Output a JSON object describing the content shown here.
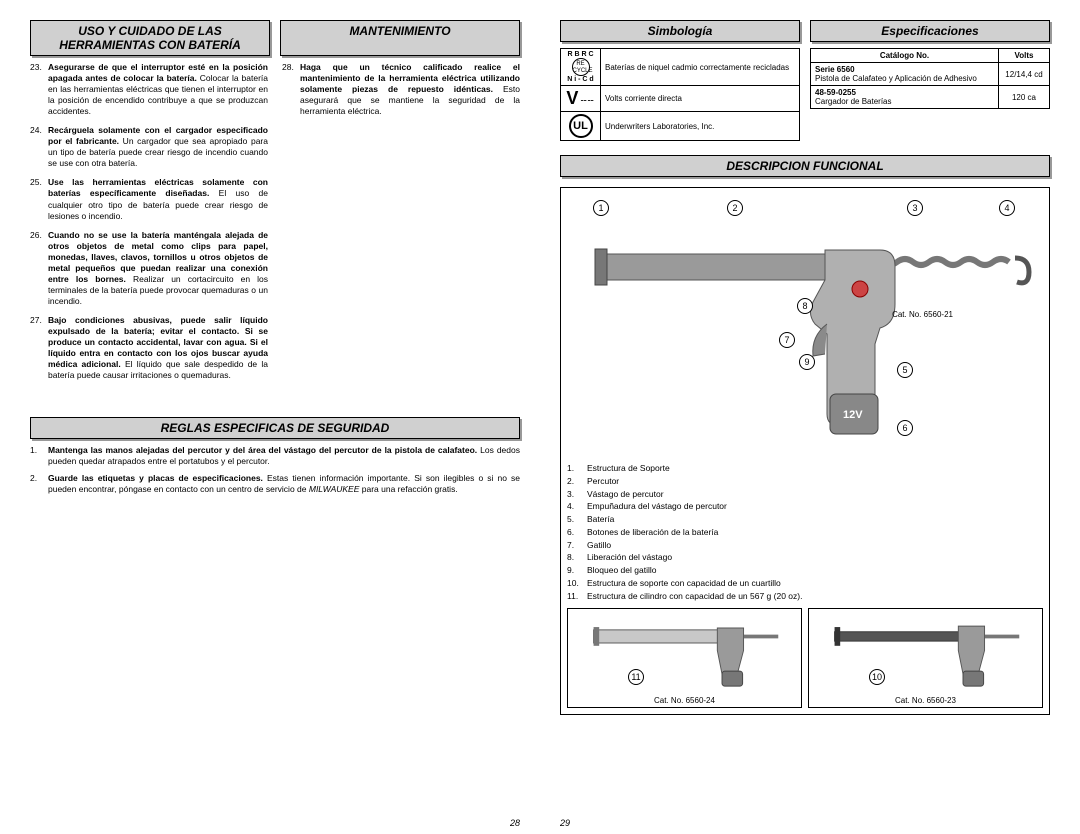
{
  "left": {
    "header_care": "USO Y CUIDADO DE LAS HERRAMIENTAS CON BATERÍA",
    "header_maint": "MANTENIMIENTO",
    "items_col1": [
      "<b>Asegurarse de que el interruptor esté en la posición apagada antes de colocar la batería.</b> Colocar la batería en las herramientas eléctricas que tienen el interruptor en la posición de encendido contribuye a que se produzcan accidentes.",
      "<b>Recárguela solamente con el cargador especificado por el fabricante.</b> Un cargador que sea apropiado para un tipo de batería puede crear riesgo de incendio cuando se use con otra batería.",
      "<b>Use las herramientas eléctricas solamente con baterías específicamente diseñadas.</b> El uso de cualquier otro tipo de batería puede crear riesgo de lesiones o incendio.",
      "<b>Cuando no se use la batería manténgala alejada de otros objetos de metal como clips para papel, monedas, llaves, clavos, tornillos u otros objetos de metal pequeños que puedan realizar una conexión entre los bornes.</b> Realizar un cortacircuito en los terminales de la batería puede provocar quemaduras o un incendio.",
      "<b>Bajo condiciones abusivas, puede salir líquido expulsado de la batería; evitar el contacto. Si se produce un contacto accidental, lavar con agua. Si el líquido entra en contacto con los ojos buscar ayuda médica adicional.</b> El líquido que sale despedido de la batería puede causar irritaciones o quemaduras."
    ],
    "items_col2": [
      "<b>Haga que un técnico calificado realice el mantenimiento de la herramienta eléctrica utilizando solamente piezas de repuesto idénticas.</b> Esto asegurará que se mantiene la seguridad de la herramienta eléctrica."
    ],
    "rules_header": "REGLAS ESPECIFICAS DE SEGURIDAD",
    "rules": [
      "<b>Mantenga las manos alejadas del percutor y del área del vástago del percutor de la pistola de calafateo.</b> Los dedos pueden quedar atrapados entre el portatubos y el percutor.",
      "<b>Guarde las etiquetas y placas de especificaciones.</b> Estas tienen información importante. Si son ilegibles o si no se pueden encontrar, póngase en contacto con un centro de servicio de <i>MILWAUKEE</i> para una refacción gratis."
    ],
    "page_num": "28"
  },
  "right": {
    "header_sym": "Simbología",
    "header_spec": "Especificaciones",
    "sym_rows": [
      {
        "icon": "recycle",
        "text": "Baterías de niquel cadmio correctamente recicladas"
      },
      {
        "icon": "volts",
        "text": "Volts corriente directa"
      },
      {
        "icon": "ul",
        "text": "Underwriters Laboratories, Inc."
      }
    ],
    "spec_headers": {
      "cat": "Catálogo No.",
      "volts": "Volts"
    },
    "spec_rows": [
      {
        "cat": "<b>Serie 6560</b><br>Pistola de Calafateo y Aplicación de Adhesivo",
        "volts": "12/14,4 cd"
      },
      {
        "cat": "<b>48-59-0255</b><br>Cargador de Baterías",
        "volts": "120 ca"
      }
    ],
    "desc_header": "DESCRIPCION FUNCIONAL",
    "main_catno": "Cat. No. 6560-21",
    "parts": [
      "Estructura de Soporte",
      "Percutor",
      "Vástago de percutor",
      "Empuñadura del vástago de percutor",
      "Batería",
      "Botones de liberación de la batería",
      "Gatillo",
      "Liberación del vástago",
      "Bloqueo del gatillo",
      "Estructura de soporte con capacidad de un cuartillo",
      "Estructura de cilindro con capacidad de un 567 g (20 oz)."
    ],
    "callouts": [
      "1",
      "2",
      "3",
      "4",
      "5",
      "6",
      "7",
      "8",
      "9",
      "10",
      "11"
    ],
    "variant_left_cat": "Cat. No. 6560-24",
    "variant_right_cat": "Cat. No. 6560-23",
    "page_num": "29"
  },
  "colors": {
    "header_bg": "#d0d0d0",
    "shadow": "#999999",
    "border": "#000000"
  }
}
